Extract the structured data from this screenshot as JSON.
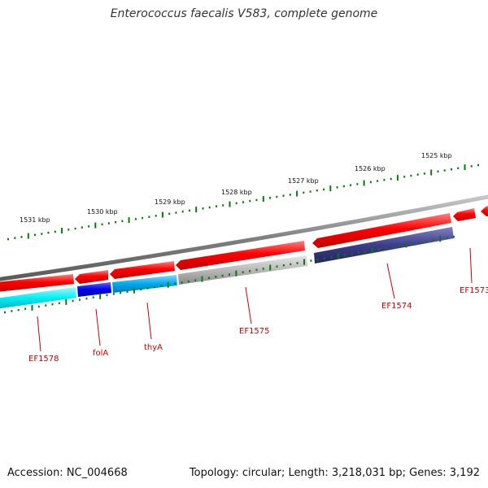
{
  "map": {
    "title": "Enterococcus faecalis V583, complete genome",
    "accession": "Accession: NC_004668",
    "stats": "Topology: circular; Length: 3,218,031 bp; Genes: 3,192"
  },
  "scale_labels": [
    "1531 kbp",
    "1530 kbp",
    "1529 kbp",
    "1528 kbp",
    "1527 kbp",
    "1526 kbp",
    "1525 kbp"
  ],
  "gene_labels": [
    "EF1578",
    "folA",
    "thyA",
    "EF1575",
    "EF1574",
    "EF1573"
  ],
  "colors": {
    "backbone": "#808080",
    "cds_red": "#ff0000",
    "ticks": "#0a7a0a",
    "label_red": "#cc0000",
    "cyan": "#00e5ee",
    "blue": "#0000ee",
    "sky": "#00aaee",
    "gray": "#b4b4b4",
    "navy": "#3c3c8c"
  }
}
